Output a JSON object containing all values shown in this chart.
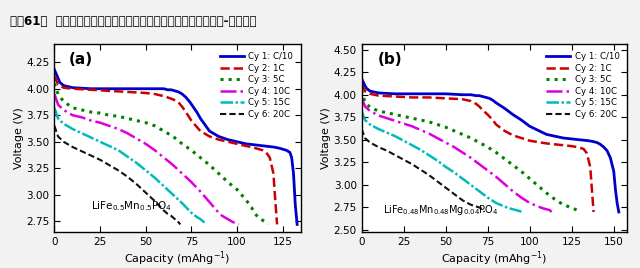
{
  "title": "图表61：  磷酸铁锰锂和镁掺杂的磷酸铁锰锂不同倍率下的比容量-电压曲线",
  "title_fontsize": 8.5,
  "bg_color": "#f2f2f2",
  "panel_a": {
    "label": "(a)",
    "formula_main": "LiFe",
    "formula_sub1": "0.5",
    "formula_mid": "Mn",
    "formula_sub2": "0.5",
    "formula_end": "PO",
    "formula_sub3": "4",
    "xlim": [
      0,
      135
    ],
    "ylim": [
      2.65,
      4.42
    ],
    "xticks": [
      0,
      25,
      50,
      75,
      100,
      125
    ],
    "yticks": [
      2.75,
      3.0,
      3.25,
      3.5,
      3.75,
      4.0,
      4.25
    ],
    "curves": [
      {
        "label": "Cy 1: C/10",
        "color": "#0000cc",
        "style": "-",
        "lw": 2.0,
        "x": [
          0,
          1,
          2,
          3,
          5,
          10,
          20,
          30,
          40,
          50,
          55,
          60,
          62,
          64,
          66,
          68,
          70,
          72,
          74,
          76,
          78,
          80,
          85,
          90,
          95,
          100,
          105,
          110,
          115,
          120,
          123,
          125,
          127,
          129,
          130,
          131,
          132,
          133
        ],
        "y": [
          4.18,
          4.14,
          4.1,
          4.06,
          4.03,
          4.01,
          4.0,
          4.0,
          4.0,
          4.0,
          4.0,
          4.0,
          3.99,
          3.99,
          3.98,
          3.97,
          3.95,
          3.92,
          3.88,
          3.83,
          3.78,
          3.72,
          3.6,
          3.55,
          3.52,
          3.5,
          3.48,
          3.47,
          3.46,
          3.45,
          3.44,
          3.43,
          3.42,
          3.4,
          3.35,
          3.2,
          2.9,
          2.72
        ]
      },
      {
        "label": "Cy 2: 1C",
        "color": "#cc0000",
        "style": "--",
        "lw": 1.8,
        "x": [
          0,
          1,
          2,
          5,
          10,
          20,
          30,
          40,
          50,
          55,
          60,
          65,
          68,
          70,
          72,
          75,
          80,
          85,
          90,
          95,
          100,
          105,
          108,
          110,
          112,
          114,
          116,
          118,
          120,
          121,
          122
        ],
        "y": [
          4.12,
          4.08,
          4.04,
          4.01,
          4.0,
          3.99,
          3.98,
          3.97,
          3.96,
          3.95,
          3.93,
          3.9,
          3.87,
          3.83,
          3.78,
          3.7,
          3.6,
          3.55,
          3.52,
          3.5,
          3.48,
          3.46,
          3.45,
          3.44,
          3.43,
          3.42,
          3.4,
          3.35,
          3.2,
          2.95,
          2.72
        ]
      },
      {
        "label": "Cy 3: 5C",
        "color": "#008000",
        "style": ":",
        "lw": 2.2,
        "x": [
          0,
          1,
          2,
          5,
          10,
          15,
          20,
          25,
          30,
          35,
          40,
          45,
          50,
          55,
          60,
          65,
          70,
          75,
          80,
          85,
          90,
          95,
          100,
          105,
          108,
          110,
          112,
          114,
          116,
          117
        ],
        "y": [
          4.05,
          4.0,
          3.95,
          3.88,
          3.82,
          3.8,
          3.78,
          3.77,
          3.75,
          3.74,
          3.72,
          3.7,
          3.68,
          3.65,
          3.6,
          3.55,
          3.48,
          3.42,
          3.35,
          3.28,
          3.2,
          3.12,
          3.05,
          2.95,
          2.88,
          2.82,
          2.78,
          2.76,
          2.74,
          2.72
        ]
      },
      {
        "label": "Cy 4: 10C",
        "color": "#dd00dd",
        "style": "-.",
        "lw": 1.8,
        "x": [
          0,
          1,
          2,
          5,
          10,
          15,
          20,
          25,
          30,
          35,
          40,
          45,
          50,
          55,
          60,
          65,
          70,
          75,
          80,
          85,
          88,
          90,
          92,
          94,
          96,
          98,
          100,
          101
        ],
        "y": [
          3.95,
          3.9,
          3.85,
          3.8,
          3.75,
          3.73,
          3.7,
          3.68,
          3.65,
          3.62,
          3.58,
          3.53,
          3.48,
          3.42,
          3.35,
          3.28,
          3.2,
          3.12,
          3.03,
          2.93,
          2.87,
          2.83,
          2.8,
          2.78,
          2.76,
          2.74,
          2.73,
          2.72
        ]
      },
      {
        "label": "Cy 5: 15C",
        "color": "#00bbbb",
        "style": "-.",
        "lw": 1.8,
        "x": [
          0,
          1,
          2,
          5,
          10,
          15,
          20,
          25,
          30,
          35,
          40,
          45,
          50,
          55,
          60,
          65,
          70,
          75,
          78,
          80,
          82,
          83
        ],
        "y": [
          3.82,
          3.77,
          3.72,
          3.67,
          3.62,
          3.58,
          3.54,
          3.5,
          3.46,
          3.42,
          3.36,
          3.3,
          3.23,
          3.16,
          3.08,
          3.0,
          2.92,
          2.83,
          2.79,
          2.77,
          2.74,
          2.72
        ]
      },
      {
        "label": "Cy 6: 20C",
        "color": "#111111",
        "style": "--",
        "lw": 1.5,
        "dash": [
          4,
          2,
          4,
          2
        ],
        "x": [
          0,
          1,
          2,
          5,
          10,
          15,
          20,
          25,
          30,
          35,
          40,
          45,
          50,
          55,
          60,
          62,
          64,
          66,
          68,
          69
        ],
        "y": [
          3.65,
          3.6,
          3.55,
          3.5,
          3.45,
          3.41,
          3.37,
          3.33,
          3.28,
          3.23,
          3.17,
          3.1,
          3.02,
          2.94,
          2.85,
          2.82,
          2.8,
          2.77,
          2.74,
          2.72
        ]
      }
    ]
  },
  "panel_b": {
    "label": "(b)",
    "xlim": [
      0,
      158
    ],
    "ylim": [
      2.48,
      4.56
    ],
    "xticks": [
      0,
      25,
      50,
      75,
      100,
      125,
      150
    ],
    "yticks": [
      2.5,
      2.75,
      3.0,
      3.25,
      3.5,
      3.75,
      4.0,
      4.25,
      4.5
    ],
    "curves": [
      {
        "label": "Cy 1: C/10",
        "color": "#0000cc",
        "style": "-",
        "lw": 2.0,
        "x": [
          0,
          1,
          2,
          3,
          5,
          10,
          20,
          30,
          40,
          50,
          60,
          65,
          68,
          70,
          72,
          74,
          76,
          78,
          80,
          85,
          90,
          95,
          100,
          110,
          120,
          130,
          135,
          138,
          140,
          142,
          144,
          146,
          148,
          150,
          151,
          152,
          153
        ],
        "y": [
          4.18,
          4.14,
          4.1,
          4.07,
          4.04,
          4.02,
          4.01,
          4.01,
          4.01,
          4.01,
          4.0,
          4.0,
          3.99,
          3.99,
          3.98,
          3.97,
          3.96,
          3.94,
          3.91,
          3.85,
          3.78,
          3.72,
          3.65,
          3.56,
          3.52,
          3.5,
          3.49,
          3.48,
          3.47,
          3.45,
          3.42,
          3.38,
          3.3,
          3.15,
          2.95,
          2.8,
          2.7
        ]
      },
      {
        "label": "Cy 2: 1C",
        "color": "#cc0000",
        "style": "--",
        "lw": 1.8,
        "x": [
          0,
          1,
          2,
          5,
          10,
          20,
          30,
          40,
          50,
          60,
          65,
          68,
          70,
          72,
          75,
          78,
          80,
          85,
          90,
          95,
          100,
          110,
          120,
          125,
          128,
          130,
          132,
          134,
          136,
          137,
          138
        ],
        "y": [
          4.12,
          4.08,
          4.04,
          4.01,
          3.99,
          3.98,
          3.97,
          3.97,
          3.96,
          3.95,
          3.93,
          3.9,
          3.87,
          3.83,
          3.78,
          3.72,
          3.67,
          3.6,
          3.55,
          3.52,
          3.49,
          3.46,
          3.44,
          3.43,
          3.42,
          3.41,
          3.4,
          3.35,
          3.2,
          2.95,
          2.7
        ]
      },
      {
        "label": "Cy 3: 5C",
        "color": "#008000",
        "style": ":",
        "lw": 2.2,
        "x": [
          0,
          1,
          2,
          5,
          10,
          15,
          20,
          25,
          30,
          35,
          40,
          45,
          50,
          55,
          60,
          65,
          70,
          75,
          80,
          85,
          90,
          95,
          100,
          105,
          110,
          115,
          120,
          123,
          125,
          127,
          128
        ],
        "y": [
          4.05,
          3.98,
          3.92,
          3.86,
          3.82,
          3.8,
          3.78,
          3.76,
          3.74,
          3.72,
          3.7,
          3.67,
          3.64,
          3.6,
          3.56,
          3.52,
          3.47,
          3.42,
          3.36,
          3.29,
          3.22,
          3.15,
          3.07,
          2.99,
          2.91,
          2.84,
          2.78,
          2.76,
          2.74,
          2.73,
          2.72
        ]
      },
      {
        "label": "Cy 4: 10C",
        "color": "#dd00dd",
        "style": "-.",
        "lw": 1.8,
        "x": [
          0,
          1,
          2,
          5,
          10,
          15,
          20,
          25,
          30,
          35,
          40,
          45,
          50,
          55,
          60,
          65,
          70,
          75,
          80,
          85,
          90,
          95,
          100,
          105,
          108,
          110,
          112,
          113
        ],
        "y": [
          3.97,
          3.92,
          3.87,
          3.82,
          3.77,
          3.74,
          3.71,
          3.68,
          3.65,
          3.61,
          3.57,
          3.52,
          3.47,
          3.42,
          3.36,
          3.3,
          3.23,
          3.16,
          3.09,
          3.01,
          2.93,
          2.86,
          2.8,
          2.76,
          2.74,
          2.73,
          2.72,
          2.7
        ]
      },
      {
        "label": "Cy 5: 15C",
        "color": "#00bbbb",
        "style": "-.",
        "lw": 1.8,
        "x": [
          0,
          1,
          2,
          5,
          10,
          15,
          20,
          25,
          30,
          35,
          40,
          45,
          50,
          55,
          60,
          65,
          70,
          75,
          80,
          85,
          88,
          90,
          92,
          94,
          95
        ],
        "y": [
          3.82,
          3.77,
          3.72,
          3.67,
          3.62,
          3.58,
          3.54,
          3.49,
          3.44,
          3.39,
          3.33,
          3.27,
          3.2,
          3.14,
          3.07,
          3.0,
          2.93,
          2.86,
          2.8,
          2.76,
          2.74,
          2.73,
          2.72,
          2.71,
          2.7
        ]
      },
      {
        "label": "Cy 6: 20C",
        "color": "#111111",
        "style": "--",
        "lw": 1.5,
        "x": [
          0,
          1,
          2,
          5,
          10,
          15,
          20,
          25,
          30,
          35,
          40,
          45,
          50,
          55,
          60,
          65,
          70,
          72,
          73
        ],
        "y": [
          3.62,
          3.57,
          3.52,
          3.47,
          3.42,
          3.38,
          3.33,
          3.28,
          3.23,
          3.17,
          3.11,
          3.04,
          2.97,
          2.9,
          2.83,
          2.78,
          2.75,
          2.73,
          2.7
        ]
      }
    ]
  }
}
